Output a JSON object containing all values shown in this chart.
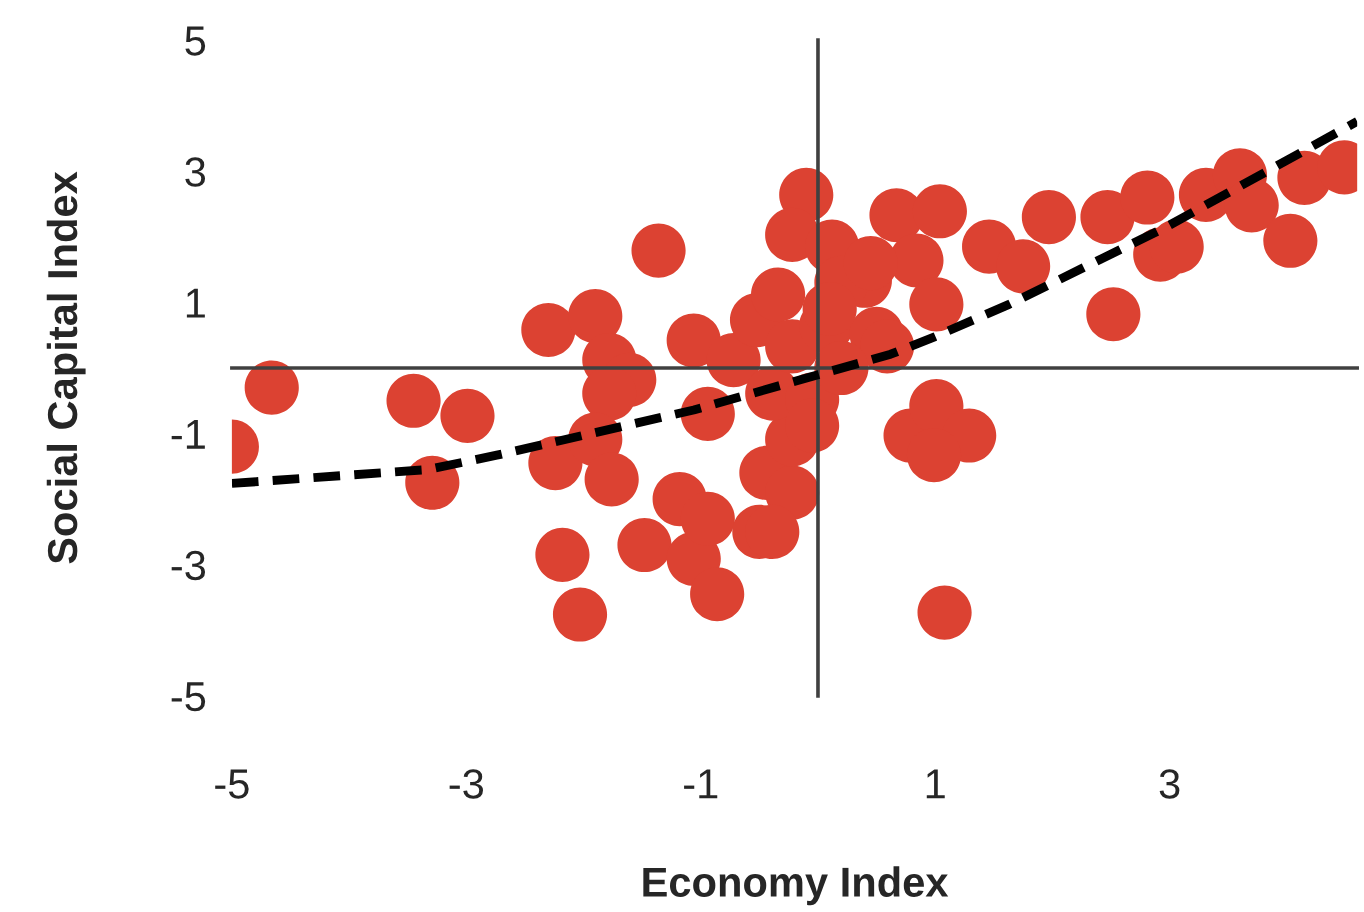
{
  "chart_data": {
    "type": "scatter",
    "xlabel": "Economy Index",
    "ylabel": "Social Capital Index",
    "xlim": [
      -5,
      4.6
    ],
    "ylim": [
      -5,
      5
    ],
    "xticks": [
      -5,
      -3,
      -1,
      1,
      3
    ],
    "yticks": [
      -5,
      -3,
      -1,
      1,
      3,
      5
    ],
    "grid": false,
    "legend": false,
    "marker": "circle",
    "series": [
      {
        "color": "#dc4232",
        "x": [
          -5.0,
          -4.66,
          -3.45,
          -3.29,
          -2.99,
          -2.3,
          -2.24,
          -1.9,
          -1.36,
          -1.78,
          -1.61,
          -1.78,
          -1.9,
          -1.76,
          -2.18,
          -2.03,
          -1.48,
          -1.18,
          -1.06,
          -0.86,
          -0.94,
          -1.06,
          -0.94,
          -0.72,
          -0.52,
          -0.34,
          -0.1,
          -0.22,
          0.12,
          -0.5,
          -0.44,
          -0.22,
          -0.22,
          -0.39,
          -0.05,
          -0.22,
          0.07,
          0.4,
          0.5,
          0.67,
          1.04,
          0.84,
          1.01,
          0.59,
          1.46,
          1.75,
          1.97,
          0.79,
          1.01,
          1.29,
          0.99,
          1.08,
          -0.39,
          -0.05,
          0.2,
          0.45,
          0.2,
          0.1,
          2.47,
          2.81,
          2.92,
          3.06,
          3.31,
          3.6,
          3.7,
          4.03,
          4.15,
          4.49,
          2.52
        ],
        "values": [
          -1.2,
          -0.3,
          -0.5,
          -1.75,
          -0.73,
          0.58,
          -1.45,
          0.79,
          1.79,
          0.12,
          -0.18,
          -0.39,
          -1.09,
          -1.7,
          -2.85,
          -3.76,
          -2.7,
          -2.0,
          -2.91,
          -3.45,
          -2.3,
          0.42,
          -0.7,
          0.12,
          0.73,
          1.12,
          2.64,
          2.03,
          1.85,
          -2.5,
          -1.6,
          -1.9,
          -1.09,
          -0.39,
          -0.48,
          0.33,
          0.64,
          1.33,
          0.52,
          2.33,
          2.39,
          1.64,
          0.97,
          0.33,
          1.85,
          1.55,
          2.3,
          -1.03,
          -0.58,
          -1.03,
          -1.33,
          -3.73,
          -2.5,
          -0.88,
          1.3,
          1.6,
          0.0,
          0.9,
          2.3,
          2.6,
          1.73,
          1.85,
          2.64,
          2.94,
          2.48,
          1.94,
          2.9,
          3.06,
          0.82
        ]
      },
      {
        "type": "line",
        "color": "#000000",
        "line_style": "dashed",
        "marker": "none",
        "x": [
          -5.0,
          -3.33,
          -2.74,
          -1.06,
          0.62,
          1.0,
          1.63,
          2.97,
          4.6
        ],
        "values": [
          -1.76,
          -1.55,
          -1.33,
          -0.64,
          0.21,
          0.48,
          0.97,
          2.15,
          3.76
        ]
      }
    ]
  }
}
